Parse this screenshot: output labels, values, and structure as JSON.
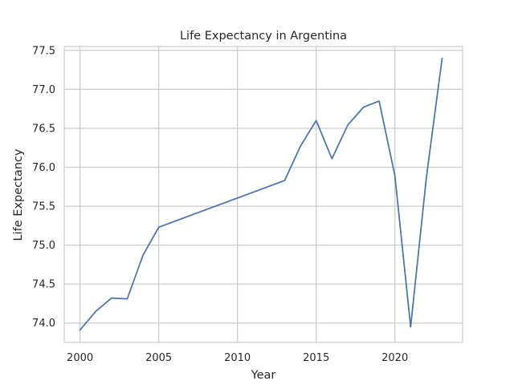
{
  "chart_data": {
    "type": "line",
    "title": "Life Expectancy in Argentina",
    "xlabel": "Year",
    "ylabel": "Life Expectancy",
    "xlim": [
      1999,
      2024.3
    ],
    "ylim": [
      73.75,
      77.55
    ],
    "xticks": [
      2000,
      2005,
      2010,
      2015,
      2020
    ],
    "yticks": [
      74.0,
      74.5,
      75.0,
      75.5,
      76.0,
      76.5,
      77.0,
      77.5
    ],
    "xtick_labels": [
      "2000",
      "2005",
      "2010",
      "2015",
      "2020"
    ],
    "ytick_labels": [
      "74.0",
      "74.5",
      "75.0",
      "75.5",
      "76.0",
      "76.5",
      "77.0",
      "77.5"
    ],
    "grid": true,
    "line_color": "#4c72b0",
    "grid_color": "#cccccc",
    "series": [
      {
        "x": [
          2000,
          2001,
          2002,
          2003,
          2004,
          2005,
          2013,
          2014,
          2015,
          2016,
          2017,
          2018,
          2019,
          2020,
          2021,
          2022,
          2023
        ],
        "y": [
          73.91,
          74.15,
          74.32,
          74.31,
          74.87,
          75.23,
          75.83,
          76.27,
          76.6,
          76.11,
          76.54,
          76.77,
          76.85,
          75.89,
          73.95,
          75.87,
          77.4
        ]
      }
    ]
  }
}
